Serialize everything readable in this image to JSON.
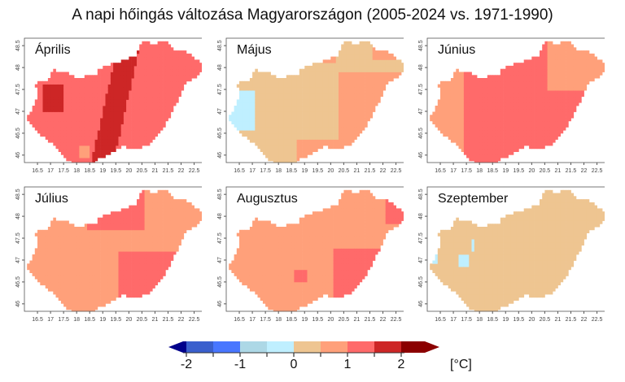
{
  "title": "A napi hőingás változása Magyarországon (2005-2024 vs. 1971-1990)",
  "x_ticks": [
    "16.5",
    "17",
    "17.5",
    "18",
    "18.5",
    "19",
    "19.5",
    "20",
    "20.5",
    "21",
    "21.5",
    "22",
    "22.5"
  ],
  "y_ticks": [
    "46",
    "46.5",
    "47",
    "47.5",
    "48",
    "48.5"
  ],
  "panels": [
    {
      "month": "Április"
    },
    {
      "month": "Május"
    },
    {
      "month": "Június"
    },
    {
      "month": "Július"
    },
    {
      "month": "Augusztus"
    },
    {
      "month": "Szeptember"
    }
  ],
  "colorbar": {
    "unit": "[°C]",
    "labels": [
      "-2",
      "-1",
      "0",
      "1",
      "2"
    ],
    "breaks": [
      -2,
      -1.5,
      -1,
      -0.5,
      0,
      0.5,
      1,
      1.5,
      2
    ],
    "colors": [
      "#00008b",
      "#3a5fcd",
      "#4876ff",
      "#add8e6",
      "#bfefff",
      "#eec591",
      "#ffa07a",
      "#ff6a6a",
      "#cd2626",
      "#8b0000"
    ]
  }
}
